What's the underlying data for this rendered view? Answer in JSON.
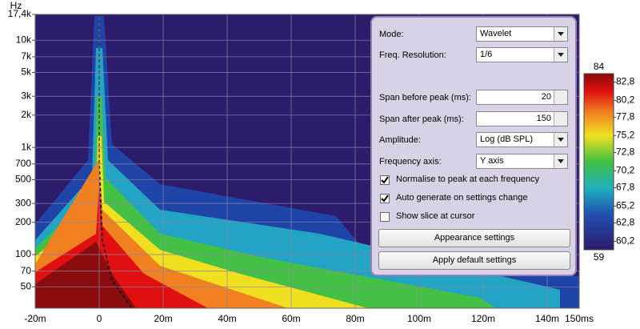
{
  "chart_data": {
    "type": "heatmap",
    "y_label": "Hz",
    "xlim": [
      -20,
      150
    ],
    "xticks": [
      {
        "value": -20,
        "label": "-20m"
      },
      0,
      {
        "value": 20,
        "label": "20m"
      },
      {
        "value": 40,
        "label": "40m"
      },
      {
        "value": 60,
        "label": "60m"
      },
      {
        "value": 80,
        "label": "80m"
      },
      {
        "value": 100,
        "label": "100m"
      },
      {
        "value": 120,
        "label": "120m"
      },
      {
        "value": 140,
        "label": "140m"
      },
      {
        "value": 150,
        "label": "150ms"
      }
    ],
    "ylim": [
      31.6,
      17400
    ],
    "ylog": true,
    "yticks": [
      {
        "value": 17400,
        "label": "17,4k"
      },
      {
        "value": 10000,
        "label": "10k"
      },
      {
        "value": 7000,
        "label": "7k"
      },
      {
        "value": 5000,
        "label": "5k"
      },
      {
        "value": 3000,
        "label": "3k"
      },
      {
        "value": 2000,
        "label": "2k"
      },
      {
        "value": 1000,
        "label": "1k"
      },
      700,
      500,
      300,
      200,
      100,
      70,
      50
    ],
    "grid": true,
    "zlim": [
      59,
      84
    ],
    "zticks": [
      {
        "value": 82.8,
        "label": "82,8"
      },
      {
        "value": 80.2,
        "label": "80,2"
      },
      {
        "value": 77.8,
        "label": "77,8"
      },
      {
        "value": 75.2,
        "label": "75,2"
      },
      {
        "value": 72.8,
        "label": "72,8"
      },
      {
        "value": 70.2,
        "label": "70,2"
      },
      {
        "value": 67.8,
        "label": "67,8"
      },
      {
        "value": 65.2,
        "label": "65,2"
      },
      {
        "value": 62.8,
        "label": "62,8"
      },
      {
        "value": 60.2,
        "label": "60,2"
      }
    ]
  },
  "controls": {
    "mode": {
      "label": "Mode:",
      "value": "Wavelet"
    },
    "freq_resolution": {
      "label": "Freq. Resolution:",
      "value": "1/6"
    },
    "span_before": {
      "label": "Span before peak (ms):",
      "value": 20
    },
    "span_after": {
      "label": "Span after peak (ms):",
      "value": 150
    },
    "amplitude": {
      "label": "Amplitude:",
      "value": "Log (dB SPL)"
    },
    "frequency_axis": {
      "label": "Frequency axis:",
      "value": "Y axis"
    },
    "checkboxes": [
      {
        "label": "Normalise to peak at each frequency",
        "checked": true
      },
      {
        "label": "Auto generate on settings change",
        "checked": true
      },
      {
        "label": "Show slice at cursor",
        "checked": false
      }
    ],
    "buttons": [
      "Appearance settings",
      "Apply default settings"
    ]
  }
}
